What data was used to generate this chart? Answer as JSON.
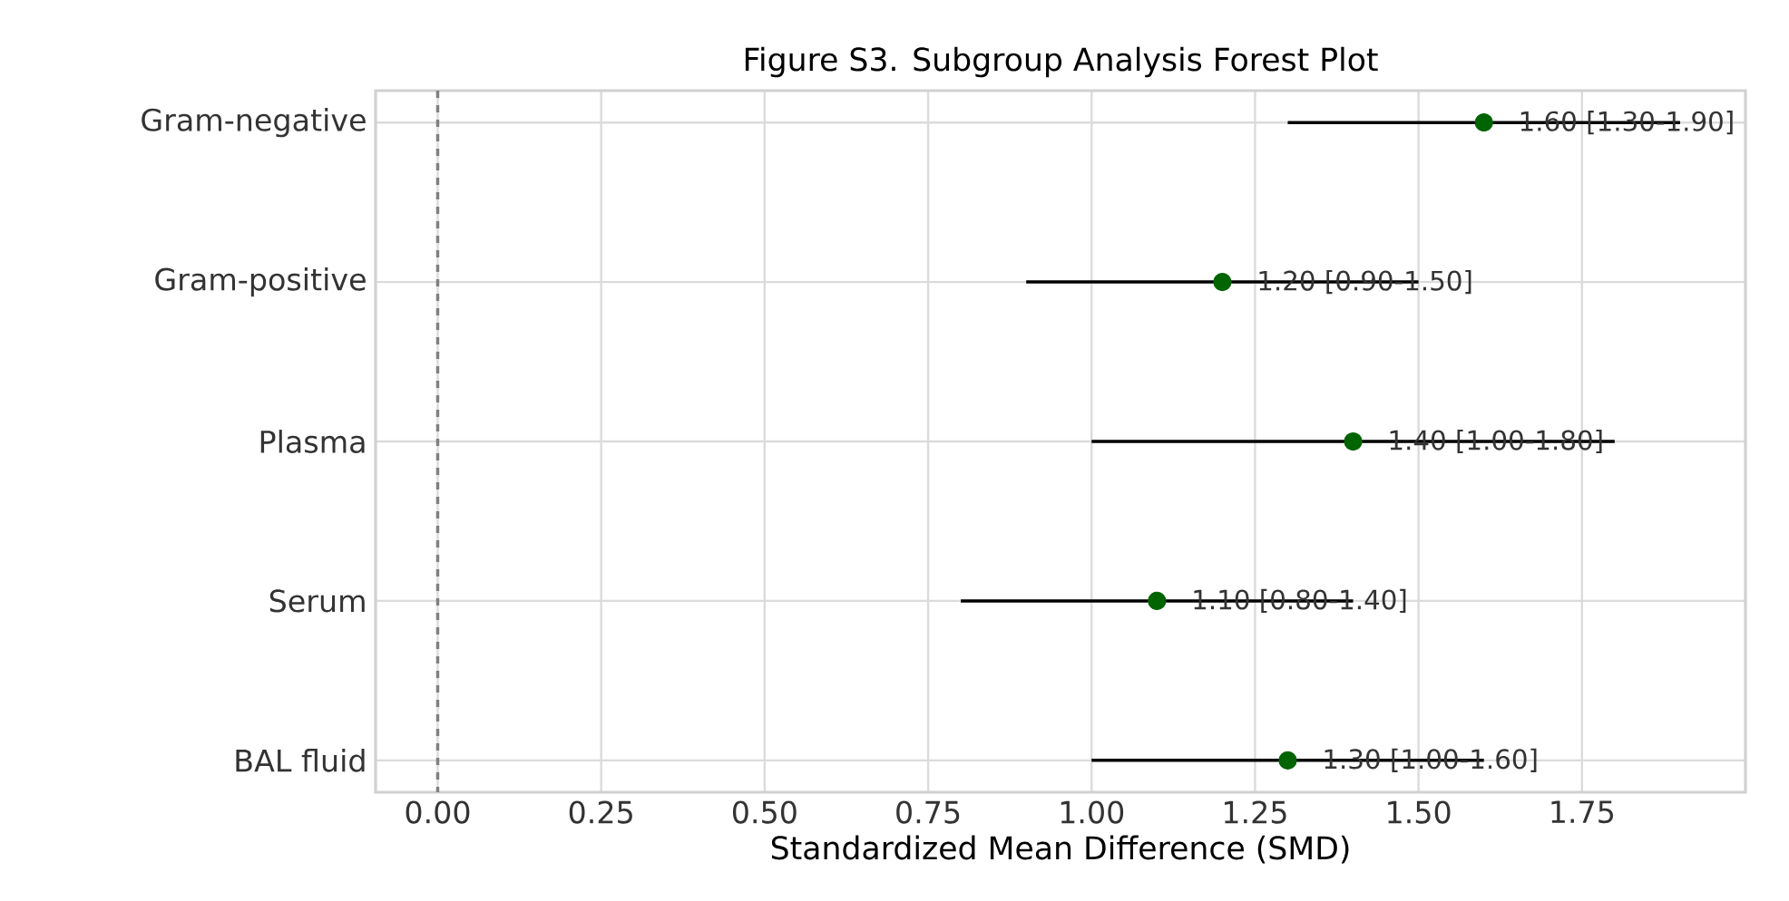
{
  "chart_data": {
    "type": "scatter",
    "orientation": "horizontal",
    "title": "Figure S3. Subgroup Analysis Forest Plot",
    "xlabel": "Standardized Mean Difference (SMD)",
    "categories": [
      "Gram-negative",
      "Gram-positive",
      "Plasma",
      "Serum",
      "BAL fluid"
    ],
    "values": [
      1.6,
      1.2,
      1.4,
      1.1,
      1.3
    ],
    "errors": [
      [
        1.3,
        1.9
      ],
      [
        0.9,
        1.5
      ],
      [
        1.0,
        1.8
      ],
      [
        0.8,
        1.4
      ],
      [
        1.0,
        1.6
      ]
    ],
    "value_labels": [
      "1.60 [1.30-1.90]",
      "1.20 [0.90-1.50]",
      "1.40 [1.00-1.80]",
      "1.10 [0.80-1.40]",
      "1.30 [1.00-1.60]"
    ],
    "color": "#006400",
    "grid": true,
    "xlim": [
      -0.095,
      2.0
    ],
    "xticks": [
      {
        "value": 0,
        "label": "0.00"
      },
      {
        "value": 0.25,
        "label": "0.25"
      },
      {
        "value": 0.5,
        "label": "0.50"
      },
      {
        "value": 0.75,
        "label": "0.75"
      },
      {
        "value": 1.0,
        "label": "1.00"
      },
      {
        "value": 1.25,
        "label": "1.25"
      },
      {
        "value": 1.5,
        "label": "1.50"
      },
      {
        "value": 1.75,
        "label": "1.75"
      }
    ],
    "ref_lines": [
      {
        "axis": "x",
        "value": 0,
        "color": "#808080",
        "line_style": "dashed"
      }
    ]
  }
}
